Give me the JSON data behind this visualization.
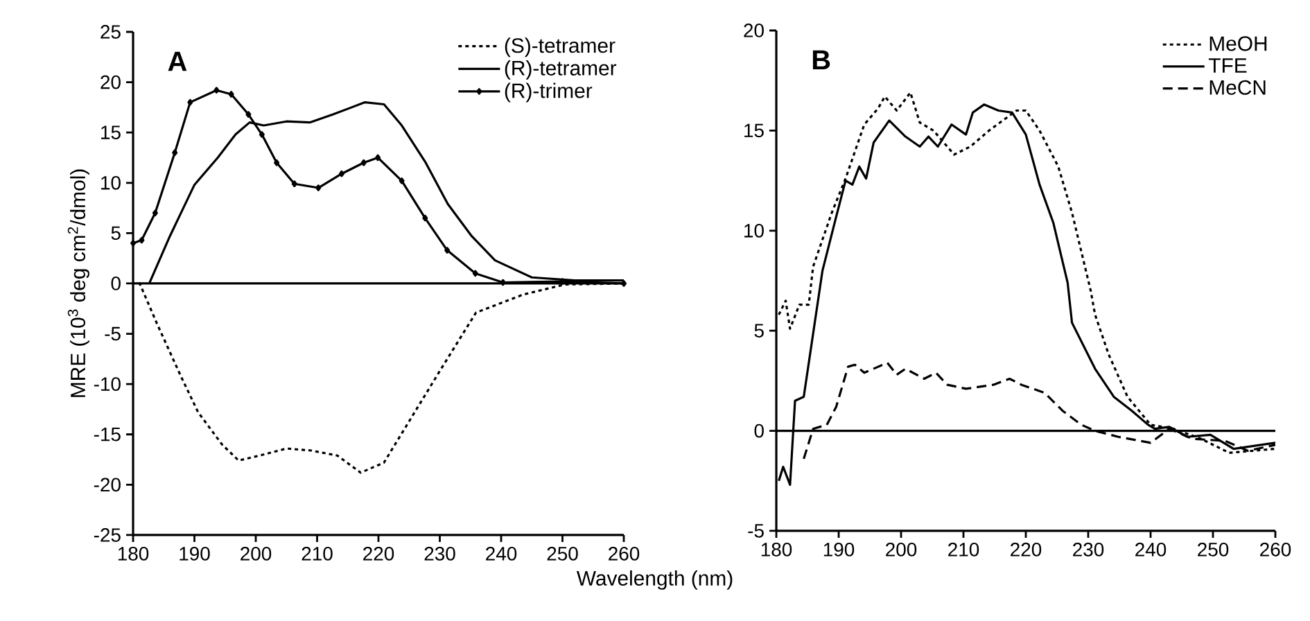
{
  "chart_data": [
    {
      "type": "line",
      "xlabel": "Wavelength (nm)",
      "ylabel": "MRE (10$^{3}$ deg cm$^{2}$/dmol)",
      "annotations": [
        "A"
      ],
      "xlim": [
        180,
        260
      ],
      "xticks": [
        180,
        190,
        200,
        210,
        220,
        230,
        240,
        250,
        260
      ],
      "ylim": [
        -25,
        25
      ],
      "yticks": [
        -25,
        -20,
        -15,
        -10,
        -5,
        0,
        5,
        10,
        15,
        20,
        25
      ],
      "legend": "top right",
      "ref_lines": [
        {
          "axis": "y",
          "value": 0
        }
      ],
      "series": [
        {
          "name": "(S)-tetramer",
          "color": "#000000",
          "line_style": "dotted",
          "x": [
            181,
            183.9,
            187.7,
            190.6,
            194.5,
            197.2,
            201.3,
            205,
            209,
            213.3,
            217.1,
            220.9,
            225.5,
            230,
            235.9,
            243.6,
            250.4,
            260
          ],
          "values": [
            0.1,
            -4,
            -9.1,
            -12.8,
            -16,
            -17.6,
            -17,
            -16.4,
            -16.6,
            -17.1,
            -18.8,
            -17.8,
            -13.2,
            -8.7,
            -2.9,
            -1.1,
            -0.1,
            0
          ]
        },
        {
          "name": "(R)-tetramer",
          "color": "#000000",
          "line_style": "solid",
          "x": [
            182.7,
            186,
            190,
            193.8,
            196.7,
            199,
            201.3,
            205,
            208.8,
            212.6,
            217.8,
            220.9,
            223.8,
            227.7,
            231.3,
            235.2,
            239,
            245,
            252,
            260
          ],
          "values": [
            0.1,
            4.7,
            9.8,
            12.5,
            14.8,
            16,
            15.7,
            16.1,
            16,
            16.8,
            18,
            17.8,
            15.7,
            12,
            7.9,
            4.7,
            2.3,
            0.6,
            0.3,
            0.3
          ]
        },
        {
          "name": "(R)-trimer",
          "color": "#000000",
          "line_style": "solid",
          "marker": "diamond",
          "x": [
            180,
            181.4,
            183.6,
            186.8,
            189.3,
            193.6,
            196,
            198.8,
            201,
            203.4,
            206.3,
            210.2,
            214,
            217.6,
            219.9,
            223.8,
            227.6,
            231.2,
            235.8,
            240.3,
            250,
            260
          ],
          "values": [
            4,
            4.3,
            7,
            13,
            18,
            19.2,
            18.8,
            16.8,
            14.8,
            12,
            9.9,
            9.5,
            10.9,
            12,
            12.5,
            10.2,
            6.5,
            3.3,
            1,
            0.1,
            0.2,
            0
          ]
        }
      ]
    },
    {
      "type": "line",
      "annotations": [
        "B"
      ],
      "xlim": [
        180,
        260
      ],
      "xticks": [
        180,
        190,
        200,
        210,
        220,
        230,
        240,
        250,
        260
      ],
      "ylim": [
        -5,
        20
      ],
      "yticks": [
        -5,
        0,
        5,
        10,
        15,
        20
      ],
      "legend": "top right",
      "ref_lines": [
        {
          "axis": "y",
          "value": 0
        }
      ],
      "series": [
        {
          "name": "MeOH",
          "color": "#000000",
          "line_style": "dotted",
          "x": [
            180.4,
            181.5,
            182.2,
            183.7,
            185.2,
            185.9,
            188.9,
            191.1,
            194.1,
            196.3,
            197.4,
            199.3,
            201.5,
            203,
            205.2,
            208.5,
            211.1,
            214.1,
            218.5,
            220,
            222.2,
            225.2,
            227.4,
            230.4,
            231.1,
            233.3,
            236.3,
            240,
            243.7,
            248.1,
            252.6,
            260
          ],
          "values": [
            5.8,
            6.5,
            5.1,
            6.3,
            6.3,
            8.2,
            10.9,
            12.6,
            15.3,
            16.1,
            16.7,
            16,
            16.9,
            15.4,
            15,
            13.8,
            14.2,
            15,
            16,
            16,
            15,
            13.2,
            10.9,
            7,
            5.8,
            3.8,
            1.7,
            0.3,
            0.1,
            -0.4,
            -1.1,
            -0.9
          ]
        },
        {
          "name": "TFE",
          "color": "#000000",
          "line_style": "solid",
          "x": [
            180.4,
            181.1,
            182.2,
            183,
            184.4,
            187.4,
            189.6,
            191.1,
            192.2,
            193.3,
            194.4,
            195.6,
            198.1,
            200.7,
            203,
            204.4,
            205.9,
            208.1,
            210.4,
            211.5,
            213.3,
            215.6,
            217.8,
            220,
            222.2,
            224.4,
            226.7,
            227.4,
            231.1,
            234.1,
            237,
            239.6,
            240.7,
            243,
            245.9,
            249.6,
            253.3,
            260
          ],
          "values": [
            -2.5,
            -1.8,
            -2.7,
            1.5,
            1.7,
            8,
            10.7,
            12.5,
            12.3,
            13.2,
            12.6,
            14.4,
            15.5,
            14.7,
            14.2,
            14.7,
            14.2,
            15.3,
            14.8,
            15.9,
            16.3,
            16,
            15.9,
            14.8,
            12.3,
            10.4,
            7.4,
            5.4,
            3.1,
            1.7,
            1,
            0.3,
            0.1,
            0.2,
            -0.3,
            -0.2,
            -0.9,
            -0.6
          ]
        },
        {
          "name": "MeCN",
          "color": "#000000",
          "line_style": "dashed",
          "x": [
            184.4,
            185.9,
            188.1,
            189.6,
            191.5,
            192.6,
            194.1,
            197.8,
            199.3,
            200.7,
            203.7,
            205.6,
            207.4,
            210.4,
            214.8,
            217.4,
            219.3,
            223,
            225.9,
            228.9,
            231.1,
            234.8,
            240,
            243,
            246.7,
            251.9,
            255.6,
            260
          ],
          "values": [
            -1.4,
            0.1,
            0.3,
            1.2,
            3.2,
            3.3,
            2.9,
            3.4,
            2.8,
            3.1,
            2.6,
            2.9,
            2.3,
            2.1,
            2.3,
            2.6,
            2.3,
            1.9,
            1,
            0.3,
            0,
            -0.3,
            -0.6,
            0.1,
            -0.4,
            -0.5,
            -1,
            -0.7
          ]
        }
      ]
    }
  ]
}
